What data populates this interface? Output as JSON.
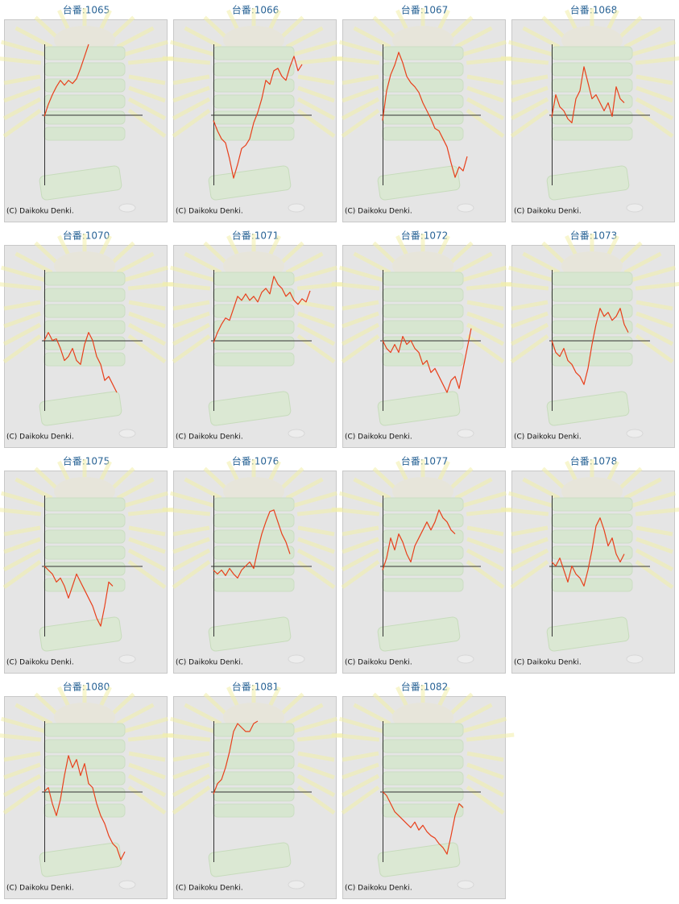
{
  "chart_data": [
    {
      "type": "line",
      "title": "台番:1065",
      "copyright": "(C) Daikoku Denki.",
      "color": "#e8401c",
      "xlim": [
        0,
        25
      ],
      "ylim": [
        -88,
        88
      ],
      "values": [
        -2,
        13,
        25,
        35,
        43,
        37,
        43,
        39,
        45,
        58,
        73,
        88
      ]
    },
    {
      "type": "line",
      "title": "台番:1066",
      "copyright": "(C) Daikoku Denki.",
      "color": "#e8401c",
      "xlim": [
        0,
        25
      ],
      "ylim": [
        -88,
        88
      ],
      "values": [
        -7,
        -20,
        -30,
        -35,
        -55,
        -79,
        -62,
        -42,
        -38,
        -30,
        -10,
        3,
        20,
        43,
        38,
        55,
        58,
        48,
        43,
        60,
        73,
        55,
        63
      ]
    },
    {
      "type": "line",
      "title": "台番:1067",
      "copyright": "(C) Daikoku Denki.",
      "color": "#e8401c",
      "xlim": [
        0,
        25
      ],
      "ylim": [
        -88,
        88
      ],
      "values": [
        -7,
        30,
        50,
        62,
        78,
        65,
        48,
        40,
        35,
        28,
        15,
        5,
        -5,
        -17,
        -20,
        -30,
        -40,
        -60,
        -78,
        -65,
        -70,
        -52
      ]
    },
    {
      "type": "line",
      "title": "台番:1068",
      "copyright": "(C) Daikoku Denki.",
      "color": "#e8401c",
      "xlim": [
        0,
        25
      ],
      "ylim": [
        -88,
        88
      ],
      "values": [
        -3,
        25,
        10,
        5,
        -5,
        -10,
        20,
        30,
        60,
        40,
        20,
        25,
        15,
        5,
        15,
        -2,
        35,
        20,
        15
      ]
    },
    {
      "type": "line",
      "title": "台番:1070",
      "copyright": "(C) Daikoku Denki.",
      "color": "#e8401c",
      "xlim": [
        0,
        25
      ],
      "ylim": [
        -88,
        88
      ],
      "values": [
        0,
        10,
        0,
        2,
        -10,
        -25,
        -20,
        -10,
        -25,
        -30,
        -5,
        10,
        0,
        -20,
        -30,
        -50,
        -45,
        -55,
        -65
      ]
    },
    {
      "type": "line",
      "title": "台番:1071",
      "copyright": "(C) Daikoku Denki.",
      "color": "#e8401c",
      "xlim": [
        0,
        25
      ],
      "ylim": [
        -88,
        88
      ],
      "values": [
        -3,
        10,
        20,
        28,
        25,
        40,
        55,
        50,
        58,
        50,
        55,
        48,
        60,
        65,
        58,
        80,
        70,
        65,
        55,
        60,
        50,
        45,
        52,
        48,
        62
      ]
    },
    {
      "type": "line",
      "title": "台番:1072",
      "copyright": "(C) Daikoku Denki.",
      "color": "#e8401c",
      "xlim": [
        0,
        25
      ],
      "ylim": [
        -88,
        88
      ],
      "values": [
        0,
        -10,
        -15,
        -5,
        -15,
        5,
        -5,
        0,
        -10,
        -15,
        -30,
        -25,
        -40,
        -35,
        -45,
        -55,
        -65,
        -50,
        -45,
        -60,
        -35,
        -10,
        15
      ]
    },
    {
      "type": "line",
      "title": "台番:1073",
      "copyright": "(C) Daikoku Denki.",
      "color": "#e8401c",
      "xlim": [
        0,
        25
      ],
      "ylim": [
        -88,
        88
      ],
      "values": [
        0,
        -15,
        -20,
        -10,
        -25,
        -30,
        -40,
        -45,
        -55,
        -35,
        -5,
        20,
        40,
        30,
        35,
        25,
        30,
        40,
        20,
        10
      ]
    },
    {
      "type": "line",
      "title": "台番:1075",
      "copyright": "(C) Daikoku Denki.",
      "color": "#e8401c",
      "xlim": [
        0,
        25
      ],
      "ylim": [
        -88,
        88
      ],
      "values": [
        0,
        -5,
        -10,
        -20,
        -15,
        -25,
        -40,
        -25,
        -10,
        -20,
        -30,
        -40,
        -50,
        -65,
        -75,
        -50,
        -20,
        -25
      ]
    },
    {
      "type": "line",
      "title": "台番:1076",
      "copyright": "(C) Daikoku Denki.",
      "color": "#e8401c",
      "xlim": [
        0,
        25
      ],
      "ylim": [
        -88,
        88
      ],
      "values": [
        -5,
        -10,
        -5,
        -12,
        -3,
        -10,
        -15,
        -5,
        0,
        5,
        -3,
        20,
        40,
        55,
        68,
        70,
        55,
        40,
        30,
        15
      ]
    },
    {
      "type": "line",
      "title": "台番:1077",
      "copyright": "(C) Daikoku Denki.",
      "color": "#e8401c",
      "xlim": [
        0,
        25
      ],
      "ylim": [
        -88,
        88
      ],
      "values": [
        -5,
        10,
        35,
        20,
        40,
        30,
        15,
        5,
        25,
        35,
        45,
        55,
        45,
        55,
        70,
        60,
        55,
        45,
        40
      ]
    },
    {
      "type": "line",
      "title": "台番:1078",
      "copyright": "(C) Daikoku Denki.",
      "color": "#e8401c",
      "xlim": [
        0,
        25
      ],
      "ylim": [
        -88,
        88
      ],
      "values": [
        5,
        0,
        10,
        -5,
        -20,
        0,
        -10,
        -15,
        -25,
        -5,
        20,
        50,
        60,
        45,
        25,
        35,
        15,
        5,
        15
      ]
    },
    {
      "type": "line",
      "title": "台番:1080",
      "copyright": "(C) Daikoku Denki.",
      "color": "#e8401c",
      "xlim": [
        0,
        25
      ],
      "ylim": [
        -88,
        88
      ],
      "values": [
        0,
        5,
        -15,
        -30,
        -10,
        20,
        45,
        30,
        40,
        20,
        35,
        10,
        5,
        -15,
        -30,
        -40,
        -55,
        -65,
        -70,
        -85,
        -75
      ]
    },
    {
      "type": "line",
      "title": "台番:1081",
      "copyright": "(C) Daikoku Denki.",
      "color": "#e8401c",
      "xlim": [
        0,
        25
      ],
      "ylim": [
        -88,
        88
      ],
      "values": [
        -3,
        10,
        15,
        30,
        50,
        75,
        85,
        80,
        75,
        75,
        85,
        88
      ]
    },
    {
      "type": "line",
      "title": "台番:1082",
      "copyright": "(C) Daikoku Denki.",
      "color": "#e8401c",
      "xlim": [
        0,
        25
      ],
      "ylim": [
        -88,
        88
      ],
      "values": [
        0,
        -5,
        -15,
        -25,
        -30,
        -35,
        -40,
        -45,
        -38,
        -48,
        -42,
        -50,
        -55,
        -58,
        -65,
        -70,
        -78,
        -55,
        -30,
        -15,
        -20
      ]
    }
  ]
}
